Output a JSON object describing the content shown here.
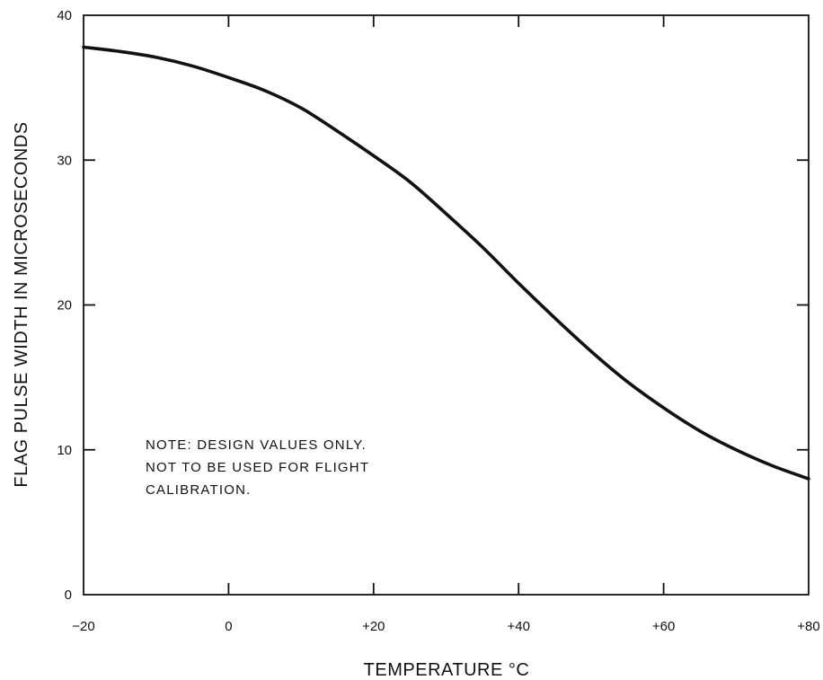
{
  "chart_data": {
    "type": "line",
    "title": "",
    "xlabel": "TEMPERATURE °C",
    "ylabel": "FLAG PULSE WIDTH IN MICROSECONDS",
    "xlim": [
      -20,
      80
    ],
    "ylim": [
      0,
      40
    ],
    "x_ticks": [
      -20,
      0,
      20,
      40,
      60,
      80
    ],
    "x_tick_labels": [
      "−20",
      "0",
      "+20",
      "+40",
      "+60",
      "+80"
    ],
    "y_ticks": [
      0,
      10,
      20,
      30,
      40
    ],
    "y_tick_labels": [
      "0",
      "10",
      "20",
      "30",
      "40"
    ],
    "grid": false,
    "series": [
      {
        "x": [
          -20,
          -15,
          -10,
          -5,
          0,
          5,
          10,
          15,
          20,
          25,
          30,
          35,
          40,
          45,
          50,
          55,
          60,
          65,
          70,
          75,
          80
        ],
        "y": [
          37.8,
          37.5,
          37.1,
          36.5,
          35.7,
          34.8,
          33.6,
          32.0,
          30.3,
          28.5,
          26.3,
          24.0,
          21.5,
          19.1,
          16.8,
          14.7,
          12.9,
          11.3,
          10.0,
          8.9,
          8.0
        ],
        "color": "#111111"
      }
    ],
    "annotations": [
      "NOTE:  DESIGN VALUES ONLY.",
      "NOT TO BE USED FOR FLIGHT",
      "CALIBRATION."
    ]
  }
}
